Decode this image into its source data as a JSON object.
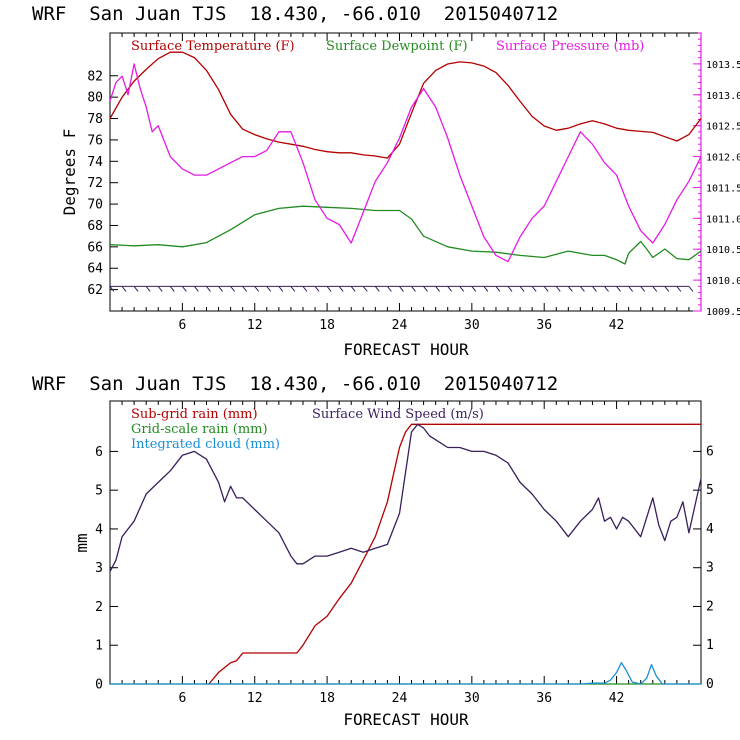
{
  "chart_data": [
    {
      "type": "line",
      "title": "WRF  San Juan TJS  18.430, -66.010  2015040712",
      "xlabel": "FORECAST HOUR",
      "ylabel": "Degrees F",
      "xlim": [
        0,
        49
      ],
      "ylim": [
        60,
        86
      ],
      "y2lim": [
        1009.5,
        1014.0
      ],
      "x_ticks": [
        6,
        12,
        18,
        24,
        30,
        36,
        42
      ],
      "y_ticks": [
        62,
        64,
        66,
        68,
        70,
        72,
        74,
        76,
        78,
        80,
        82
      ],
      "y2_ticks": [
        "1009.5",
        "1010.0",
        "1010.5",
        "1011.0",
        "1011.5",
        "1012.0",
        "1012.5",
        "1013.0",
        "1013.5"
      ],
      "grid": false,
      "legend_position": "top-left",
      "series": [
        {
          "name": "Surface Temperature (F)",
          "color": "#b30000",
          "axis": "left",
          "x": [
            0,
            1,
            2,
            3,
            4,
            5,
            6,
            7,
            8,
            9,
            10,
            11,
            12,
            13,
            14,
            15,
            16,
            17,
            18,
            19,
            20,
            21,
            22,
            23,
            24,
            25,
            26,
            27,
            28,
            29,
            30,
            31,
            32,
            33,
            34,
            35,
            36,
            37,
            38,
            39,
            40,
            41,
            42,
            43,
            44,
            45,
            46,
            47,
            48,
            49
          ],
          "values": [
            78.0,
            80.0,
            81.5,
            82.6,
            83.6,
            84.2,
            84.2,
            83.7,
            82.5,
            80.7,
            78.4,
            77.0,
            76.5,
            76.1,
            75.8,
            75.6,
            75.4,
            75.1,
            74.9,
            74.8,
            74.8,
            74.6,
            74.5,
            74.3,
            75.6,
            78.5,
            81.3,
            82.5,
            83.1,
            83.3,
            83.2,
            82.9,
            82.3,
            81.1,
            79.6,
            78.2,
            77.3,
            76.9,
            77.1,
            77.5,
            77.8,
            77.5,
            77.1,
            76.9,
            76.8,
            76.7,
            76.3,
            75.9,
            76.5,
            78.0
          ]
        },
        {
          "name": "Surface Dewpoint (F)",
          "color": "#228b22",
          "axis": "left",
          "x": [
            0,
            2,
            4,
            6,
            8,
            10,
            12,
            14,
            16,
            18,
            20,
            22,
            24,
            25,
            26,
            28,
            30,
            32,
            34,
            36,
            37,
            38,
            40,
            41,
            42,
            42.7,
            43,
            44,
            44.5,
            45,
            46,
            47,
            48,
            49
          ],
          "values": [
            66.2,
            66.1,
            66.2,
            66.0,
            66.4,
            67.6,
            69.0,
            69.6,
            69.8,
            69.7,
            69.6,
            69.4,
            69.4,
            68.6,
            67.0,
            66.0,
            65.6,
            65.5,
            65.2,
            65.0,
            65.3,
            65.6,
            65.2,
            65.2,
            64.8,
            64.4,
            65.4,
            66.5,
            65.8,
            65.0,
            65.8,
            64.9,
            64.8,
            65.6
          ]
        },
        {
          "name": "Surface Pressure (mb)",
          "color": "#e619e6",
          "axis": "right",
          "x": [
            0,
            0.5,
            1,
            1.5,
            2,
            2.5,
            3,
            3.5,
            4,
            5,
            6,
            7,
            8,
            9,
            10,
            11,
            12,
            13,
            14,
            15,
            16,
            17,
            18,
            19,
            20,
            21,
            22,
            23,
            24,
            25,
            26,
            27,
            28,
            29,
            30,
            31,
            32,
            33,
            34,
            35,
            36,
            37,
            38,
            39,
            40,
            41,
            42,
            43,
            44,
            45,
            46,
            47,
            48,
            49
          ],
          "values": [
            1012.9,
            1013.2,
            1013.3,
            1013.0,
            1013.5,
            1013.1,
            1012.8,
            1012.4,
            1012.5,
            1012.0,
            1011.8,
            1011.7,
            1011.7,
            1011.8,
            1011.9,
            1012.0,
            1012.0,
            1012.1,
            1012.4,
            1012.4,
            1011.9,
            1011.3,
            1011.0,
            1010.9,
            1010.6,
            1011.1,
            1011.6,
            1011.9,
            1012.3,
            1012.8,
            1013.1,
            1012.8,
            1012.3,
            1011.7,
            1011.2,
            1010.7,
            1010.4,
            1010.3,
            1010.7,
            1011.0,
            1011.2,
            1011.6,
            1012.0,
            1012.4,
            1012.2,
            1011.9,
            1011.7,
            1011.2,
            1010.8,
            1010.6,
            1010.9,
            1011.3,
            1011.6,
            1012.0
          ]
        }
      ],
      "wind_barbs": {
        "color": "#3a1f5c",
        "baseline_y": 62.3,
        "x": [
          0,
          1,
          2,
          3,
          4,
          5,
          6,
          7,
          8,
          9,
          10,
          11,
          12,
          13,
          14,
          15,
          16,
          17,
          18,
          19,
          20,
          21,
          22,
          23,
          24,
          25,
          26,
          27,
          28,
          29,
          30,
          31,
          32,
          33,
          34,
          35,
          36,
          37,
          38,
          39,
          40,
          41,
          42,
          43,
          44,
          45,
          46,
          47,
          48
        ]
      }
    },
    {
      "type": "line",
      "title": "WRF  San Juan TJS  18.430, -66.010  2015040712",
      "xlabel": "FORECAST HOUR",
      "ylabel": "mm",
      "xlim": [
        0,
        49
      ],
      "ylim": [
        0,
        7.3
      ],
      "y2lim": [
        0,
        7.3
      ],
      "x_ticks": [
        6,
        12,
        18,
        24,
        30,
        36,
        42
      ],
      "y_ticks": [
        0,
        1,
        2,
        3,
        4,
        5,
        6
      ],
      "y2_ticks": [
        0,
        1,
        2,
        3,
        4,
        5,
        6
      ],
      "grid": false,
      "legend_position": "top-left",
      "series": [
        {
          "name": "Sub-grid rain (mm)",
          "color": "#b30000",
          "axis": "left",
          "x": [
            8.2,
            9,
            10,
            10.5,
            11,
            15.5,
            16,
            17,
            18,
            19,
            20,
            21,
            22,
            23,
            23.5,
            24,
            24.5,
            25,
            49
          ],
          "values": [
            0,
            0.3,
            0.55,
            0.6,
            0.8,
            0.8,
            1.0,
            1.5,
            1.75,
            2.2,
            2.6,
            3.2,
            3.8,
            4.7,
            5.4,
            6.1,
            6.5,
            6.7,
            6.7
          ]
        },
        {
          "name": "Grid-scale rain (mm)",
          "color": "#228b22",
          "axis": "left",
          "x": [
            0,
            49
          ],
          "values": [
            0,
            0
          ]
        },
        {
          "name": "Integrated cloud (mm)",
          "color": "#1a8fd6",
          "axis": "left",
          "x": [
            0,
            39,
            40,
            41,
            41.5,
            42,
            42.4,
            42.8,
            43.3,
            44,
            44.5,
            44.9,
            45.3,
            45.8,
            46.5,
            49
          ],
          "values": [
            0,
            0,
            0.02,
            0.02,
            0.1,
            0.3,
            0.55,
            0.35,
            0.05,
            0,
            0.15,
            0.5,
            0.2,
            0,
            0,
            0
          ]
        },
        {
          "name": "Surface Wind Speed (m/s)",
          "color": "#3a1f5c",
          "axis": "right",
          "x": [
            0,
            0.5,
            1,
            1.5,
            2,
            3,
            4,
            5,
            6,
            7,
            8,
            9,
            9.5,
            10,
            10.5,
            11,
            12,
            13,
            14,
            15,
            15.5,
            16,
            17,
            18,
            19,
            20,
            21,
            22,
            23,
            24,
            25,
            25.5,
            26,
            26.5,
            27,
            28,
            29,
            30,
            31,
            32,
            33,
            34,
            35,
            36,
            37,
            38,
            39,
            40,
            40.5,
            41,
            41.5,
            42,
            42.5,
            43,
            44,
            45,
            45.5,
            46,
            46.5,
            47,
            47.5,
            48,
            49
          ],
          "values": [
            2.9,
            3.2,
            3.8,
            4.0,
            4.2,
            4.9,
            5.2,
            5.5,
            5.9,
            6.0,
            5.8,
            5.2,
            4.7,
            5.1,
            4.8,
            4.8,
            4.5,
            4.2,
            3.9,
            3.3,
            3.1,
            3.1,
            3.3,
            3.3,
            3.4,
            3.5,
            3.4,
            3.5,
            3.6,
            4.4,
            6.5,
            6.7,
            6.6,
            6.4,
            6.3,
            6.1,
            6.1,
            6.0,
            6.0,
            5.9,
            5.7,
            5.2,
            4.9,
            4.5,
            4.2,
            3.8,
            4.2,
            4.5,
            4.8,
            4.2,
            4.3,
            4.0,
            4.3,
            4.2,
            3.8,
            4.8,
            4.1,
            3.7,
            4.2,
            4.3,
            4.7,
            3.9,
            5.3
          ]
        }
      ]
    }
  ]
}
